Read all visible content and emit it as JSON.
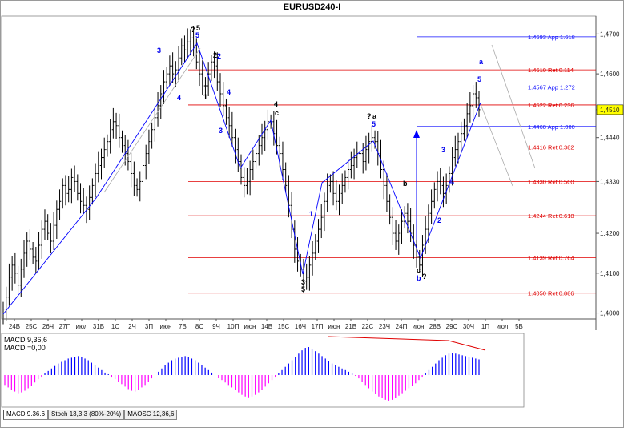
{
  "window": {
    "title": "EURUSD240-I"
  },
  "indicator_tabs": [
    {
      "label": "MACD 9.36.6",
      "active": true
    },
    {
      "label": "Stoch 13,3,3 (80%-20%)",
      "active": false
    },
    {
      "label": "MAOSC 12,36,6",
      "active": false
    }
  ],
  "macd_legend": {
    "line1": "MACD 9,36,6",
    "line2": "MACD =0,00"
  },
  "colors": {
    "candle": "#000000",
    "blue_line": "#0000ff",
    "red_level": "#e00000",
    "hist_pos": "#0000ff",
    "hist_neg": "#ff00ff",
    "current_price_bg": "#ffff00"
  },
  "chart_data": [
    {
      "type": "candlestick",
      "title": "EURUSD240-I",
      "y_tick_labels": [
        "1,4700",
        "1,4600",
        "1,4510",
        "1,4440",
        "1,4330",
        "1,4200",
        "1,4100",
        "1,4000"
      ],
      "ylim": [
        1.3985,
        1.4745
      ],
      "current_price": "1,4510",
      "x_tick_labels": [
        "24В",
        "25С",
        "26Ч",
        "27П",
        "июл",
        "31В",
        "1С",
        "2Ч",
        "3П",
        "июн",
        "7В",
        "8С",
        "9Ч",
        "10П",
        "июн",
        "14В",
        "15С",
        "16Ч",
        "17П",
        "июн",
        "21В",
        "22С",
        "23Ч",
        "24П",
        "июн",
        "28В",
        "29С",
        "30Ч",
        "1П",
        "июл",
        "5В"
      ],
      "grid": false,
      "fib_levels": [
        {
          "label": "1.4693 App 1.618",
          "value": 1.4693,
          "color": "blue"
        },
        {
          "label": "1.4610 Ret 0.114",
          "value": 1.461,
          "color": "red"
        },
        {
          "label": "1.4567 App 1.272",
          "value": 1.4567,
          "color": "blue"
        },
        {
          "label": "1.4522 Ret 0.236",
          "value": 1.4522,
          "color": "red"
        },
        {
          "label": "1.4468 App 1.000",
          "value": 1.4468,
          "color": "blue"
        },
        {
          "label": "1.4416 Ret 0.382",
          "value": 1.4416,
          "color": "red"
        },
        {
          "label": "1.4330 Ret 0.500",
          "value": 1.433,
          "color": "red"
        },
        {
          "label": "1.4244 Ret 0.618",
          "value": 1.4244,
          "color": "red"
        },
        {
          "label": "1.4139 Ret 0.764",
          "value": 1.4139,
          "color": "red"
        },
        {
          "label": "1.4050 Ret 0.886",
          "value": 1.405,
          "color": "red"
        }
      ],
      "close_path": [
        1.401,
        1.404,
        1.409,
        1.412,
        1.41,
        1.407,
        1.411,
        1.415,
        1.418,
        1.416,
        1.414,
        1.413,
        1.417,
        1.421,
        1.423,
        1.42,
        1.418,
        1.422,
        1.426,
        1.428,
        1.432,
        1.43,
        1.431,
        1.434,
        1.433,
        1.43,
        1.428,
        1.427,
        1.426,
        1.429,
        1.432,
        1.435,
        1.437,
        1.439,
        1.441,
        1.443,
        1.446,
        1.448,
        1.447,
        1.444,
        1.442,
        1.44,
        1.438,
        1.435,
        1.432,
        1.431,
        1.433,
        1.437,
        1.44,
        1.443,
        1.446,
        1.449,
        1.452,
        1.455,
        1.458,
        1.46,
        1.462,
        1.46,
        1.461,
        1.464,
        1.467,
        1.466,
        1.468,
        1.469,
        1.467,
        1.463,
        1.46,
        1.457,
        1.457,
        1.46,
        1.463,
        1.462,
        1.458,
        1.455,
        1.452,
        1.449,
        1.447,
        1.444,
        1.441,
        1.438,
        1.434,
        1.432,
        1.433,
        1.436,
        1.438,
        1.44,
        1.442,
        1.444,
        1.446,
        1.448,
        1.448,
        1.445,
        1.442,
        1.44,
        1.436,
        1.432,
        1.427,
        1.421,
        1.416,
        1.413,
        1.411,
        1.408,
        1.409,
        1.412,
        1.415,
        1.418,
        1.421,
        1.424,
        1.428,
        1.432,
        1.433,
        1.43,
        1.428,
        1.43,
        1.432,
        1.434,
        1.436,
        1.437,
        1.439,
        1.44,
        1.44,
        1.438,
        1.441,
        1.443,
        1.444,
        1.443,
        1.44,
        1.436,
        1.432,
        1.428,
        1.424,
        1.42,
        1.418,
        1.42,
        1.423,
        1.425,
        1.423,
        1.42,
        1.417,
        1.414,
        1.412,
        1.417,
        1.421,
        1.425,
        1.428,
        1.431,
        1.433,
        1.432,
        1.43,
        1.432,
        1.435,
        1.439,
        1.441,
        1.443,
        1.445,
        1.447,
        1.45,
        1.452,
        1.455,
        1.454,
        1.451
      ],
      "wave_labels": [
        {
          "text": "?",
          "color": "black"
        },
        {
          "text": "5",
          "color": "black"
        },
        {
          "text": "5",
          "color": "blue"
        },
        {
          "text": "3",
          "color": "blue"
        },
        {
          "text": "2",
          "color": "blue"
        },
        {
          "text": "4",
          "color": "blue"
        },
        {
          "text": "2",
          "color": "black"
        },
        {
          "text": "1",
          "color": "black"
        },
        {
          "text": "4",
          "color": "blue"
        },
        {
          "text": "3",
          "color": "blue"
        },
        {
          "text": "4",
          "color": "black"
        },
        {
          "text": "c",
          "color": "black"
        },
        {
          "text": "?",
          "color": "black"
        },
        {
          "text": "a",
          "color": "black"
        },
        {
          "text": "5",
          "color": "blue"
        },
        {
          "text": "b",
          "color": "black"
        },
        {
          "text": "?",
          "color": "black"
        },
        {
          "text": "c",
          "color": "black"
        },
        {
          "text": "b",
          "color": "blue"
        },
        {
          "text": "5",
          "color": "blue"
        },
        {
          "text": "a",
          "color": "blue"
        },
        {
          "text": "5",
          "color": "black"
        },
        {
          "text": "3",
          "color": "black"
        },
        {
          "text": "1",
          "color": "blue"
        },
        {
          "text": "2",
          "color": "blue"
        },
        {
          "text": "3",
          "color": "blue"
        },
        {
          "text": "4",
          "color": "blue"
        }
      ]
    },
    {
      "type": "bar",
      "title": "MACD 9,36,6",
      "series": [
        {
          "name": "MACD",
          "values": [
            -1.2,
            -1.5,
            -1.8,
            -2.0,
            -2.2,
            -2.1,
            -1.9,
            -1.6,
            -1.3,
            -0.9,
            -0.5,
            -0.2,
            0.2,
            0.5,
            0.8,
            1.1,
            1.4,
            1.6,
            1.8,
            2.0,
            2.1,
            2.2,
            2.3,
            2.2,
            2.0,
            1.8,
            1.5,
            1.2,
            0.9,
            0.6,
            0.3,
            0.1,
            -0.2,
            -0.5,
            -0.8,
            -1.1,
            -1.4,
            -1.7,
            -1.9,
            -2.0,
            -1.8,
            -1.5,
            -1.2,
            -0.8,
            -0.4,
            0.0,
            0.4,
            0.8,
            1.2,
            1.5,
            1.8,
            2.0,
            2.1,
            2.2,
            2.3,
            2.2,
            2.0,
            1.8,
            1.5,
            1.2,
            0.9,
            0.6,
            0.3,
            0.0,
            -0.3,
            -0.6,
            -0.9,
            -1.2,
            -1.5,
            -1.8,
            -2.1,
            -2.4,
            -2.6,
            -2.7,
            -2.6,
            -2.4,
            -2.1,
            -1.8,
            -1.4,
            -1.0,
            -0.6,
            -0.2,
            0.2,
            0.6,
            1.0,
            1.4,
            1.8,
            2.2,
            2.6,
            3.0,
            3.3,
            3.4,
            3.2,
            2.9,
            2.6,
            2.3,
            2.0,
            1.7,
            1.4,
            1.2,
            1.0,
            0.8,
            0.6,
            0.4,
            0.2,
            -0.1,
            -0.4,
            -0.8,
            -1.2,
            -1.6,
            -2.0,
            -2.3,
            -2.6,
            -2.8,
            -3.0,
            -3.1,
            -3.0,
            -2.8,
            -2.5,
            -2.2,
            -1.9,
            -1.6,
            -1.3,
            -1.0,
            -0.6,
            -0.2,
            0.2,
            0.6,
            1.0,
            1.4,
            1.8,
            2.1,
            2.4,
            2.6,
            2.7,
            2.6,
            2.5,
            2.4,
            2.3,
            2.2,
            2.1,
            2.0,
            1.9
          ]
        }
      ],
      "ylim": [
        -3.5,
        3.5
      ],
      "legend": [
        "MACD 9,36,6",
        "MACD =0,00"
      ]
    }
  ]
}
